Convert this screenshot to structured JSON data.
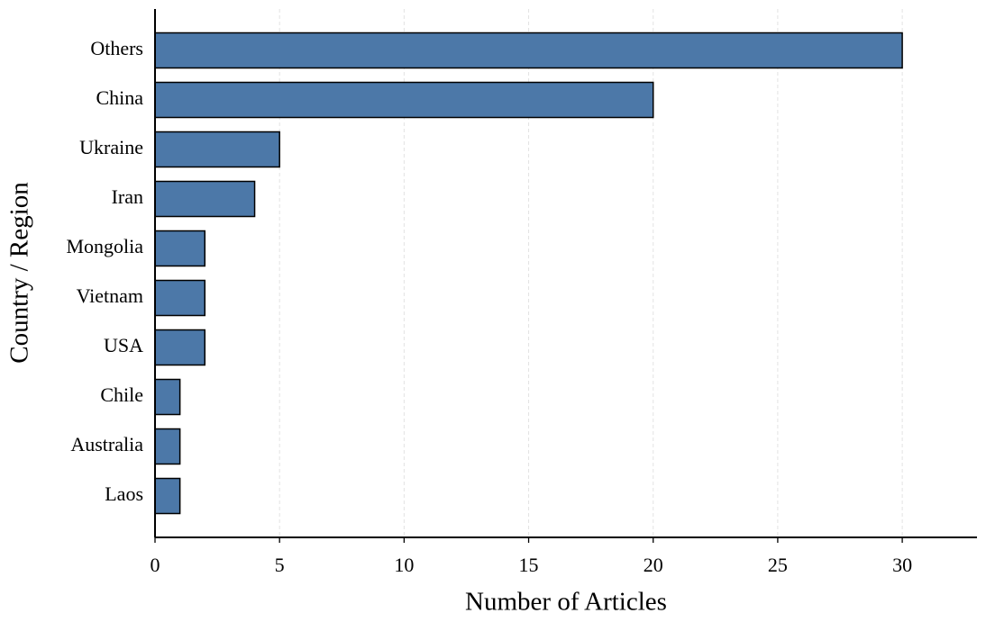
{
  "chart_data": {
    "type": "barh",
    "x_label": "Number of Articles",
    "y_label": "Country / Region",
    "categories": [
      "Others",
      "China",
      "Ukraine",
      "Iran",
      "Mongolia",
      "Vietnam",
      "USA",
      "Chile",
      "Australia",
      "Laos"
    ],
    "values": [
      30,
      20,
      5,
      4,
      2,
      2,
      2,
      1,
      1,
      1
    ],
    "color": "#4c78a8",
    "xlim": [
      0,
      33
    ],
    "xticks": [
      0,
      5,
      10,
      15,
      20,
      25,
      30
    ],
    "grid": true
  }
}
